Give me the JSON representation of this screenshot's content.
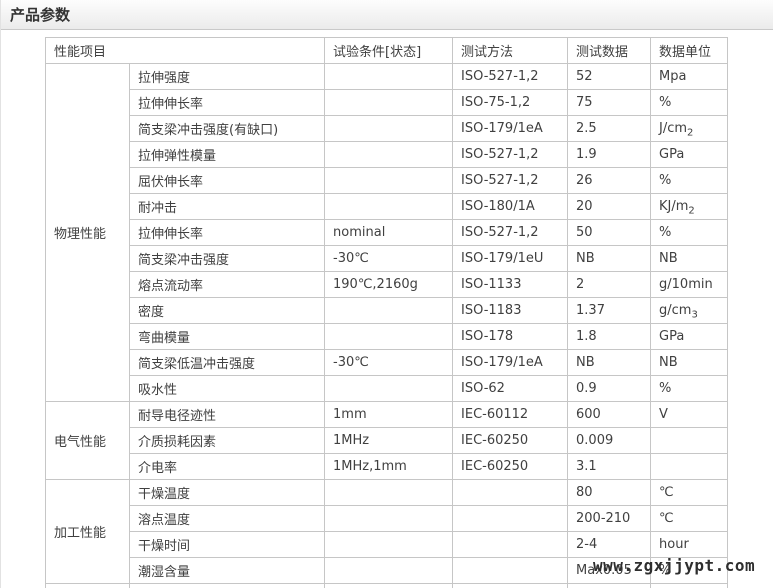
{
  "page_title": "产品参数",
  "watermark": "www.zgxjjypt.com",
  "colors": {
    "titlebar_bg_top": "#fdfdfd",
    "titlebar_bg_bottom": "#ebebeb",
    "table_border": "#c6c6c6",
    "text": "#404040",
    "title_text": "#333333"
  },
  "table": {
    "headers": [
      "性能项目",
      "试验条件[状态]",
      "测试方法",
      "测试数据",
      "数据单位"
    ],
    "sections": [
      {
        "category": "物理性能",
        "rows": [
          {
            "item": "拉伸强度",
            "condition": "",
            "method": "ISO-527-1,2",
            "value": "52",
            "unit": "Mpa"
          },
          {
            "item": "拉伸伸长率",
            "condition": "",
            "method": "ISO-75-1,2",
            "value": "75",
            "unit": "%"
          },
          {
            "item": "简支梁冲击强度(有缺口)",
            "condition": "",
            "method": "ISO-179/1eA",
            "value": "2.5",
            "unit": "J/cm2"
          },
          {
            "item": "拉伸弹性模量",
            "condition": "",
            "method": "ISO-527-1,2",
            "value": "1.9",
            "unit": "GPa"
          },
          {
            "item": "屈伏伸长率",
            "condition": "",
            "method": "ISO-527-1,2",
            "value": "26",
            "unit": "%"
          },
          {
            "item": "耐冲击",
            "condition": "",
            "method": "ISO-180/1A",
            "value": "20",
            "unit": "KJ/m2"
          },
          {
            "item": "拉伸伸长率",
            "condition": "nominal",
            "method": "ISO-527-1,2",
            "value": "50",
            "unit": "%"
          },
          {
            "item": "简支梁冲击强度",
            "condition": "-30℃",
            "method": "ISO-179/1eU",
            "value": "NB",
            "unit": "NB"
          },
          {
            "item": "熔点流动率",
            "condition": "190℃,2160g",
            "method": "ISO-1133",
            "value": "2",
            "unit": "g/10min"
          },
          {
            "item": "密度",
            "condition": "",
            "method": "ISO-1183",
            "value": "1.37",
            "unit": "g/cm3"
          },
          {
            "item": "弯曲模量",
            "condition": "",
            "method": "ISO-178",
            "value": "1.8",
            "unit": "GPa"
          },
          {
            "item": "简支梁低温冲击强度",
            "condition": "-30℃",
            "method": "ISO-179/1eA",
            "value": "NB",
            "unit": "NB"
          },
          {
            "item": "吸水性",
            "condition": "",
            "method": "ISO-62",
            "value": "0.9",
            "unit": "%"
          }
        ]
      },
      {
        "category": "电气性能",
        "rows": [
          {
            "item": "耐导电径迹性",
            "condition": "1mm",
            "method": "IEC-60112",
            "value": "600",
            "unit": "V"
          },
          {
            "item": "介质损耗因素",
            "condition": "1MHz",
            "method": "IEC-60250",
            "value": "0.009",
            "unit": ""
          },
          {
            "item": "介电率",
            "condition": "1MHz,1mm",
            "method": "IEC-60250",
            "value": "3.1",
            "unit": ""
          }
        ]
      },
      {
        "category": "加工性能",
        "rows": [
          {
            "item": "干燥温度",
            "condition": "",
            "method": "",
            "value": "80",
            "unit": "℃"
          },
          {
            "item": "溶点温度",
            "condition": "",
            "method": "",
            "value": "200-210",
            "unit": "℃"
          },
          {
            "item": "干燥时间",
            "condition": "",
            "method": "",
            "value": "2-4",
            "unit": "hour"
          },
          {
            "item": "潮湿含量",
            "condition": "",
            "method": "",
            "value": "Max0.05",
            "unit": "%"
          }
        ]
      }
    ]
  }
}
